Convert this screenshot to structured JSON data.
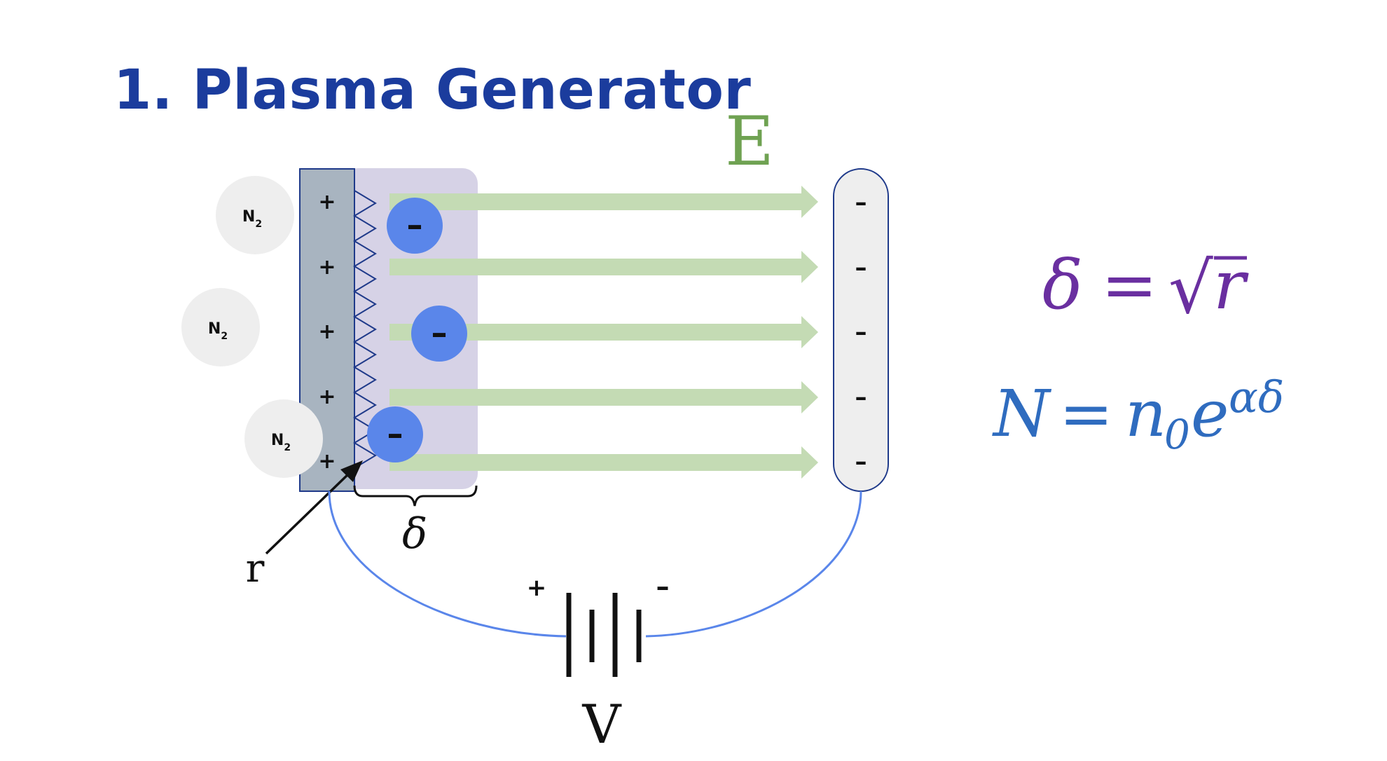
{
  "title": "1. Plasma Generator",
  "field_label": "E",
  "electrode_plus_sign": "+",
  "collector_minus_sign": "–",
  "electron_sign": "–",
  "molecule_label": "N",
  "molecule_subscript": "2",
  "delta_label": "δ",
  "radius_label": "r",
  "voltage_label": "V",
  "battery_plus": "+",
  "battery_minus": "–",
  "equations": {
    "eq1": {
      "lhs": "δ",
      "eq": "=",
      "sqrt": "√",
      "rhs": "r"
    },
    "eq2": {
      "lhs": "N",
      "eq": "=",
      "n": "n",
      "sub": "0",
      "e": "e",
      "exp": "αδ"
    }
  },
  "colors": {
    "title": "#1b3c9d",
    "field_green": "#6fa252",
    "arrow_green": "#c4dbb4",
    "electrode_fill": "#a8b4c0",
    "electrode_stroke": "#1f3a8a",
    "region_fill": "#d6d2e6",
    "electron": "#5a86ea",
    "wire": "#5a86ea",
    "molecule": "#eeeeee",
    "eq1": "#6a2fa0",
    "eq2": "#2f6cbf"
  }
}
